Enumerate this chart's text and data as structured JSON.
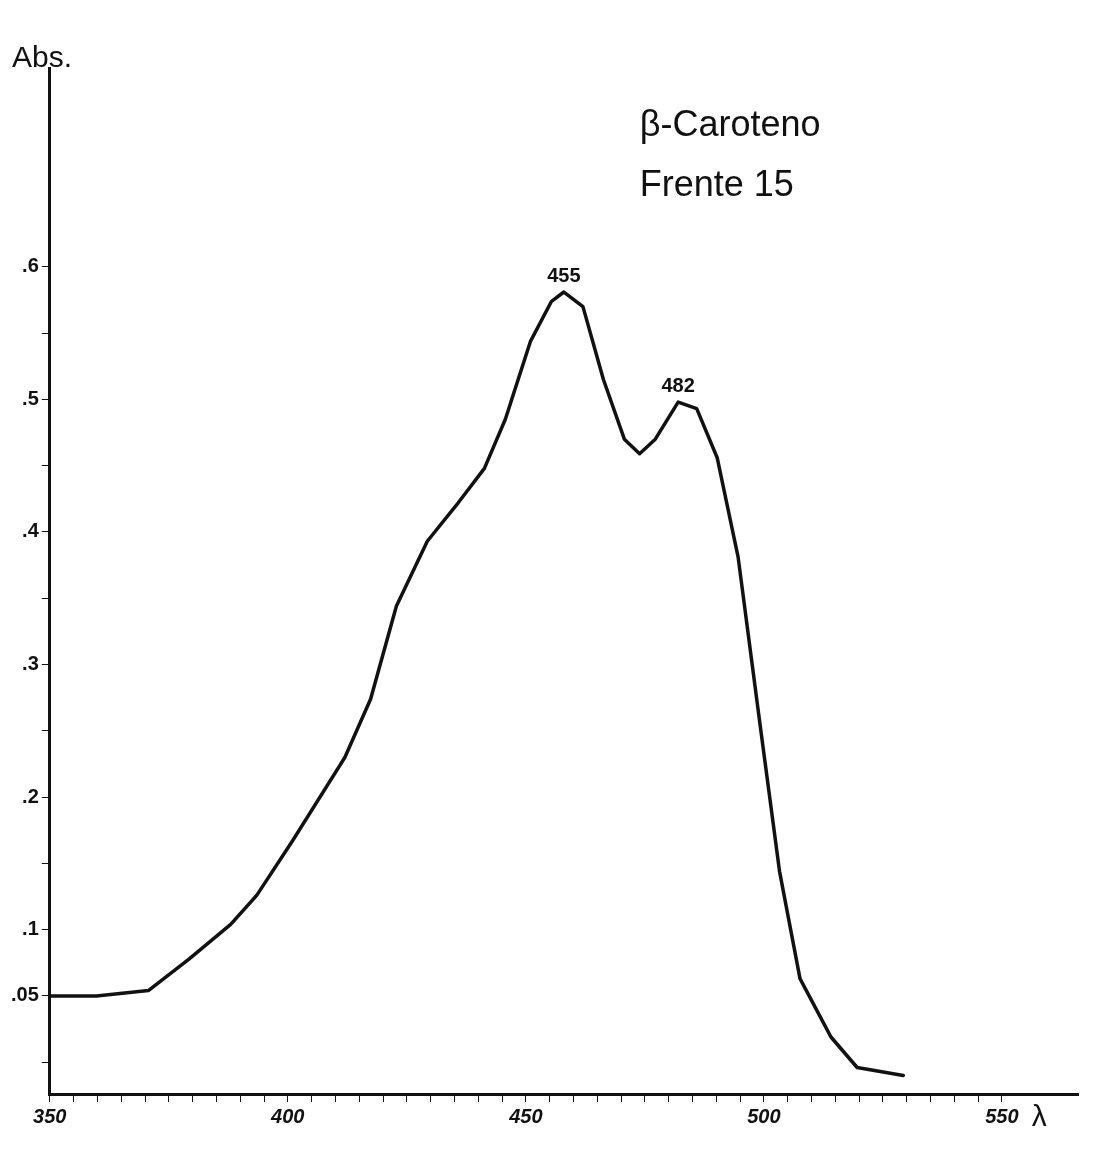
{
  "chart_data": {
    "type": "line",
    "title": "β-Caroteno",
    "subtitle": "Frente 15",
    "xlabel": "λ",
    "ylabel": "Abs.",
    "x": [
      350,
      359.8,
      370.7,
      379.3,
      388,
      393.5,
      401,
      412,
      417.4,
      422.8,
      429.3,
      435.8,
      441.3,
      445.7,
      451,
      455.4,
      458,
      462,
      466.3,
      470.7,
      473.9,
      477.2,
      482,
      485.9,
      490.2,
      494.6,
      498.9,
      503.3,
      507.6,
      514.1,
      519.6,
      529.3
    ],
    "series": [
      {
        "color": "#111111",
        "values": [
          0.05,
          0.05,
          0.054,
          0.078,
          0.104,
          0.126,
          0.167,
          0.23,
          0.274,
          0.344,
          0.393,
          0.422,
          0.448,
          0.485,
          0.544,
          0.574,
          0.581,
          0.57,
          0.515,
          0.47,
          0.459,
          0.47,
          0.498,
          0.493,
          0.456,
          0.381,
          0.263,
          0.144,
          0.063,
          0.019,
          -0.004,
          -0.01
        ]
      }
    ],
    "xlim": [
      350,
      566
    ],
    "ylim": [
      -0.024,
      0.75
    ],
    "xticks": [
      350,
      {
        "value": 355,
        "label": null
      },
      {
        "value": 360,
        "label": null
      },
      {
        "value": 365,
        "label": null
      },
      {
        "value": 370,
        "label": null
      },
      {
        "value": 375,
        "label": null
      },
      {
        "value": 380,
        "label": null
      },
      {
        "value": 385,
        "label": null
      },
      {
        "value": 390,
        "label": null
      },
      {
        "value": 395,
        "label": null
      },
      400,
      {
        "value": 405,
        "label": null
      },
      {
        "value": 410,
        "label": null
      },
      {
        "value": 415,
        "label": null
      },
      {
        "value": 420,
        "label": null
      },
      {
        "value": 425,
        "label": null
      },
      {
        "value": 430,
        "label": null
      },
      {
        "value": 435,
        "label": null
      },
      {
        "value": 440,
        "label": null
      },
      {
        "value": 445,
        "label": null
      },
      450,
      {
        "value": 455,
        "label": null
      },
      {
        "value": 460,
        "label": null
      },
      {
        "value": 465,
        "label": null
      },
      {
        "value": 470,
        "label": null
      },
      {
        "value": 475,
        "label": null
      },
      {
        "value": 480,
        "label": null
      },
      {
        "value": 485,
        "label": null
      },
      {
        "value": 490,
        "label": null
      },
      {
        "value": 495,
        "label": null
      },
      500,
      {
        "value": 505,
        "label": null
      },
      {
        "value": 510,
        "label": null
      },
      {
        "value": 515,
        "label": null
      },
      {
        "value": 520,
        "label": null
      },
      {
        "value": 525,
        "label": null
      },
      {
        "value": 530,
        "label": null
      },
      {
        "value": 535,
        "label": null
      },
      {
        "value": 540,
        "label": null
      },
      {
        "value": 545,
        "label": null
      },
      550
    ],
    "yticks": [
      {
        "value": 0,
        "label": null
      },
      {
        "value": 0.05,
        "label": ".05"
      },
      {
        "value": 0.1,
        "label": ".1"
      },
      {
        "value": 0.15,
        "label": null
      },
      {
        "value": 0.2,
        "label": ".2"
      },
      {
        "value": 0.25,
        "label": null
      },
      {
        "value": 0.3,
        "label": ".3"
      },
      {
        "value": 0.35,
        "label": null
      },
      {
        "value": 0.4,
        "label": ".4"
      },
      {
        "value": 0.45,
        "label": null
      },
      {
        "value": 0.5,
        "label": ".5"
      },
      {
        "value": 0.55,
        "label": null
      },
      {
        "value": 0.6,
        "label": ".6"
      }
    ],
    "annotations": [
      {
        "text": "455",
        "x": 458,
        "y": 0.581
      },
      {
        "text": "482",
        "x": 482,
        "y": 0.498
      }
    ],
    "grid": false,
    "legend": false,
    "marker": "none",
    "line_style": "solid"
  }
}
